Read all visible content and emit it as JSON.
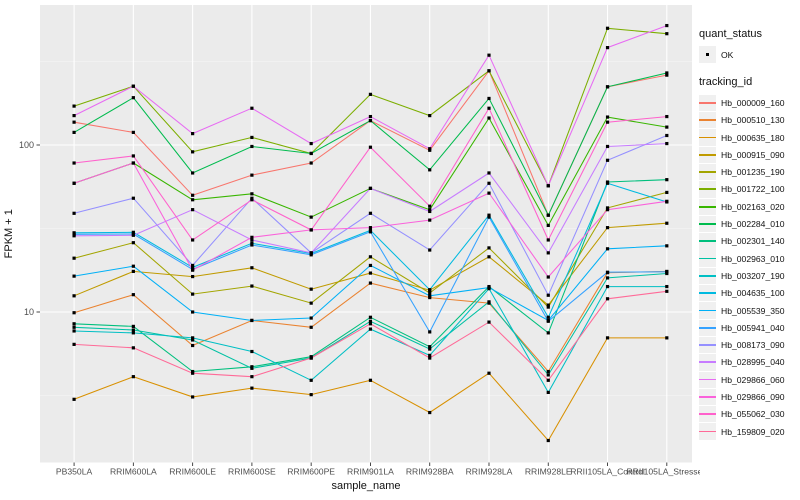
{
  "chart_data": {
    "type": "line",
    "title": "",
    "xlabel": "sample_name",
    "ylabel": "FPKM + 1",
    "y_scale": "log10",
    "y_tick_labels": [
      "10",
      "100"
    ],
    "y_tick_values": [
      10,
      100
    ],
    "y_minor_values": [
      3.162,
      31.62,
      316.2
    ],
    "ylim": [
      1.25,
      690
    ],
    "grid": true,
    "legend_position": "right",
    "point_marker": {
      "shape": "filled-square",
      "color": "#000000"
    },
    "categories": [
      "PB350LA",
      "RRIM600LA",
      "RRIM600LE",
      "RRIM600SE",
      "RRIM600PE",
      "RRIM901LA",
      "RRIM928BA",
      "RRIM928LA",
      "RRIM928LE",
      "RRII105LA_Control",
      "RRII105LA_Stressed"
    ],
    "legend": {
      "quant_status": {
        "title": "quant_status",
        "items": [
          {
            "label": "OK",
            "marker": "point",
            "color": "#000000"
          }
        ]
      },
      "tracking_id": {
        "title": "tracking_id"
      }
    },
    "series": [
      {
        "name": "Hb_000009_160",
        "color": "#F8766D",
        "values": [
          137,
          119,
          50,
          66,
          78,
          140,
          93,
          278,
          38,
          223,
          262
        ]
      },
      {
        "name": "Hb_000510_130",
        "color": "#EA8331",
        "values": [
          9.9,
          12.7,
          6.3,
          8.9,
          8.1,
          14.9,
          12.2,
          11.3,
          4.4,
          17.2,
          17.5
        ]
      },
      {
        "name": "Hb_000635_180",
        "color": "#D89000",
        "values": [
          3.0,
          4.1,
          3.1,
          3.5,
          3.2,
          3.9,
          2.5,
          4.3,
          1.7,
          7.0,
          7.0
        ]
      },
      {
        "name": "Hb_000915_090",
        "color": "#C09B00",
        "values": [
          12.5,
          17.5,
          16.3,
          18.4,
          13.7,
          17.1,
          13.5,
          21.4,
          11.0,
          32,
          34
        ]
      },
      {
        "name": "Hb_001235_190",
        "color": "#A3A500",
        "values": [
          21,
          26,
          12.8,
          14.3,
          11.3,
          21.4,
          13.0,
          24.2,
          10.7,
          42,
          52
        ]
      },
      {
        "name": "Hb_001722_100",
        "color": "#7CAE00",
        "values": [
          171,
          225,
          91,
          111,
          89,
          201,
          150,
          278,
          57,
          500,
          464
        ]
      },
      {
        "name": "Hb_002163_020",
        "color": "#39B600",
        "values": [
          59,
          78,
          47,
          51,
          37,
          55,
          41,
          145,
          33,
          147,
          128
        ]
      },
      {
        "name": "Hb_002284_010",
        "color": "#00BB4E",
        "values": [
          119,
          192,
          68,
          98,
          89,
          140,
          71,
          190,
          38,
          223,
          270
        ]
      },
      {
        "name": "Hb_002301_140",
        "color": "#00BF7D",
        "values": [
          8.5,
          8.2,
          4.4,
          4.7,
          5.4,
          9.3,
          6.2,
          14.2,
          7.5,
          60,
          62
        ]
      },
      {
        "name": "Hb_002963_010",
        "color": "#00C1A3",
        "values": [
          8.1,
          7.8,
          6.8,
          4.6,
          5.3,
          8.8,
          6.0,
          11.5,
          4.2,
          16.0,
          17.0
        ]
      },
      {
        "name": "Hb_003207_190",
        "color": "#00BFC4",
        "values": [
          7.7,
          7.5,
          7.0,
          5.8,
          3.9,
          7.9,
          5.5,
          13.8,
          3.3,
          14.2,
          14.2
        ]
      },
      {
        "name": "Hb_004635_100",
        "color": "#00BAE0",
        "values": [
          29.8,
          30.0,
          18.5,
          25.8,
          22.4,
          30.8,
          13.6,
          38.0,
          9.3,
          59.0,
          45.6
        ]
      },
      {
        "name": "Hb_005539_350",
        "color": "#00B0F6",
        "values": [
          16.4,
          18.8,
          10.0,
          8.9,
          9.2,
          19.0,
          12.5,
          14.0,
          8.9,
          23.9,
          24.9
        ]
      },
      {
        "name": "Hb_005941_040",
        "color": "#35A2FF",
        "values": [
          29.2,
          29.3,
          18.0,
          25.2,
          22.0,
          30.2,
          7.6,
          37.0,
          8.8,
          17.3,
          17.4
        ]
      },
      {
        "name": "Hb_008173_090",
        "color": "#9590FF",
        "values": [
          39,
          48,
          19,
          48,
          22.6,
          39,
          23.5,
          59,
          12.6,
          81,
          114
        ]
      },
      {
        "name": "Hb_028995_040",
        "color": "#C77CFF",
        "values": [
          28.6,
          28.8,
          41,
          27,
          22.6,
          55,
          40,
          68,
          22.6,
          98,
          102
        ]
      },
      {
        "name": "Hb_029866_060",
        "color": "#E76BF3",
        "values": [
          150,
          225,
          117,
          166,
          102,
          148,
          95,
          345,
          57,
          383,
          519
        ]
      },
      {
        "name": "Hb_029866_090",
        "color": "#FA62DB",
        "values": [
          59,
          78,
          17.8,
          28,
          31,
          32,
          35.5,
          51.5,
          16.2,
          41,
          46
        ]
      },
      {
        "name": "Hb_055062_030",
        "color": "#FF61CC",
        "values": [
          78,
          86,
          27,
          47,
          31,
          97,
          43,
          166,
          27,
          137,
          148
        ]
      },
      {
        "name": "Hb_159809_020",
        "color": "#FF6A98",
        "values": [
          6.4,
          6.1,
          4.3,
          4.1,
          5.3,
          8.5,
          5.3,
          8.7,
          3.9,
          12.0,
          13.3
        ]
      }
    ]
  },
  "style": {
    "panel_bg": "#EBEBEB",
    "grid_major": "#FFFFFF",
    "grid_minor": "#F7F7F7",
    "tick_text": "#4D4D4D",
    "axis_title": "#111111",
    "tick_mark": "#333333",
    "legend_key_bg": "#F0F0F0",
    "point_color": "#000000"
  }
}
